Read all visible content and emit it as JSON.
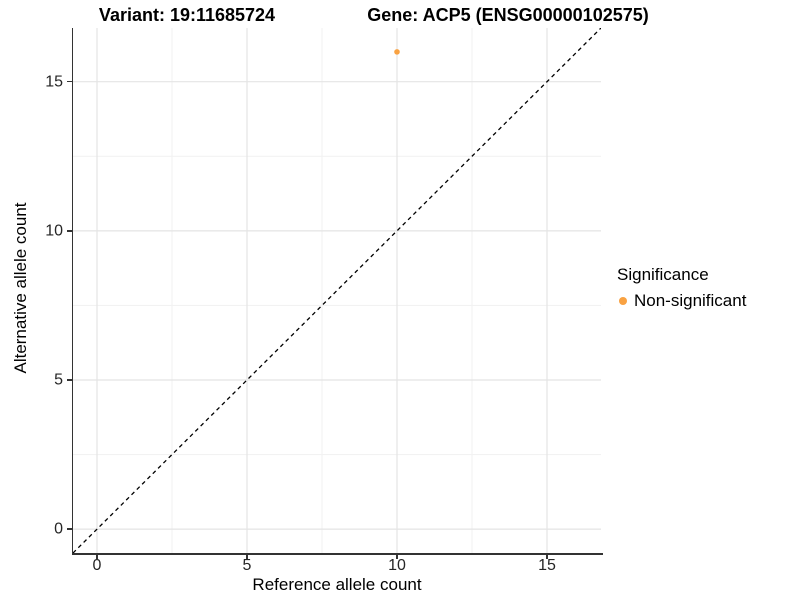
{
  "titles": {
    "variant": "Variant: 19:11685724",
    "gene": "Gene: ACP5 (ENSG00000102575)"
  },
  "chart_data": {
    "type": "scatter",
    "xlabel": "Reference allele count",
    "ylabel": "Alternative allele count",
    "xlim": [
      -0.8,
      16.8
    ],
    "ylim": [
      -0.8,
      16.8
    ],
    "x_ticks": [
      0,
      5,
      10,
      15
    ],
    "y_ticks": [
      0,
      5,
      10,
      15
    ],
    "x_minor_ticks": [
      2.5,
      7.5,
      12.5
    ],
    "y_minor_ticks": [
      2.5,
      7.5,
      12.5
    ],
    "grid": true,
    "series": [
      {
        "name": "Non-significant",
        "color": "#F9A242",
        "points": [
          {
            "x": 10,
            "y": 16
          }
        ]
      }
    ],
    "reference_line": {
      "type": "identity",
      "slope": 1,
      "intercept": 0,
      "style": "dashed",
      "color": "#000000"
    },
    "legend": {
      "title": "Significance",
      "position": "right",
      "entries": [
        {
          "label": "Non-significant",
          "color": "#F9A242"
        }
      ]
    },
    "colors": {
      "background": "#FFFFFF",
      "grid_major": "#E4E4E4",
      "grid_minor": "#F1F1F1",
      "axis_line": "#333333",
      "tick_text": "#262626",
      "title_text": "#000000"
    }
  }
}
